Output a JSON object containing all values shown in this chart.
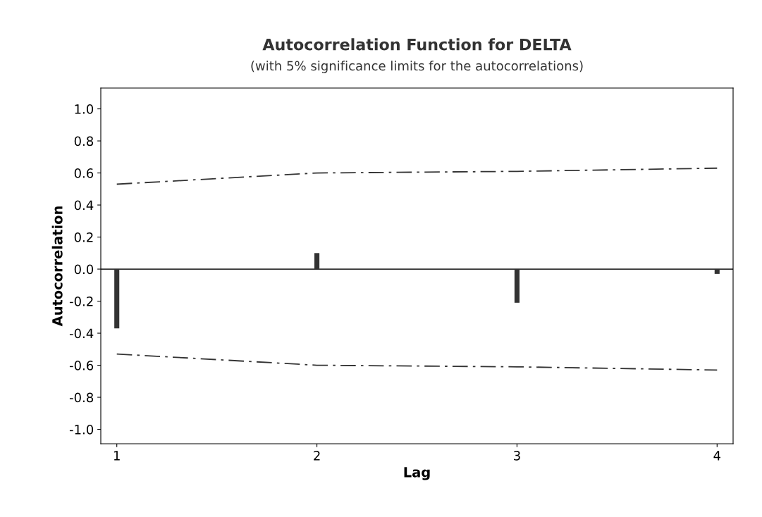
{
  "chart_data": {
    "type": "bar",
    "title": "Autocorrelation Function for DELTA",
    "subtitle": "(with 5% significance limits for the autocorrelations)",
    "xlabel": "Lag",
    "ylabel": "Autocorrelation",
    "series": [
      {
        "color": "#333333",
        "x": [
          1,
          2,
          3,
          4
        ],
        "values": [
          -0.37,
          0.1,
          -0.21,
          -0.03
        ]
      },
      {
        "type": "line",
        "color": "#333333",
        "line_style": "dashed",
        "x": [
          1,
          1.5,
          2,
          3,
          4
        ],
        "values": [
          0.53,
          0.565,
          0.6,
          0.61,
          0.63
        ]
      },
      {
        "type": "line",
        "color": "#333333",
        "line_style": "dashed",
        "x": [
          1,
          1.5,
          2,
          3,
          4
        ],
        "values": [
          -0.53,
          -0.565,
          -0.6,
          -0.61,
          -0.63
        ]
      }
    ],
    "ref_lines": [
      {
        "axis": "y",
        "value": 0,
        "color": "#333333"
      }
    ],
    "xlim": [
      0.92,
      4.08
    ],
    "xticks": [
      1,
      2,
      3,
      4
    ],
    "ylim": [
      -1.09,
      1.13
    ],
    "yticks": [
      {
        "value": -1,
        "label": "-1.0"
      },
      {
        "value": -0.8,
        "label": "-0.8"
      },
      {
        "value": -0.6,
        "label": "-0.6"
      },
      {
        "value": -0.4,
        "label": "-0.4"
      },
      {
        "value": -0.2,
        "label": "-0.2"
      },
      {
        "value": 0,
        "label": "0.0"
      },
      {
        "value": 0.2,
        "label": "0.2"
      },
      {
        "value": 0.4,
        "label": "0.4"
      },
      {
        "value": 0.6,
        "label": "0.6"
      },
      {
        "value": 0.8,
        "label": "0.8"
      },
      {
        "value": 1,
        "label": "1.0"
      }
    ],
    "grid": false,
    "legend": false
  }
}
